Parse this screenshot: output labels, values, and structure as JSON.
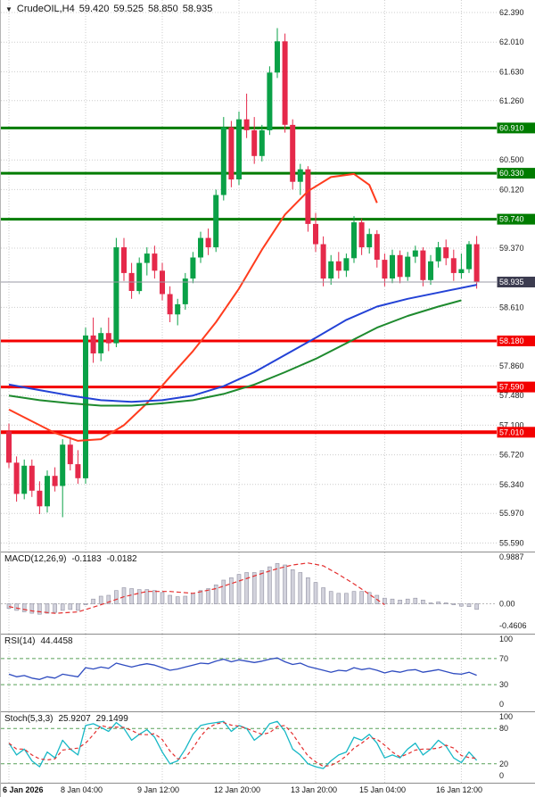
{
  "header": {
    "dropdown_icon": "▼",
    "symbol": "CrudeOIL,H4",
    "open": "59.420",
    "high": "59.525",
    "low": "58.850",
    "close": "58.935"
  },
  "chart_data": [
    {
      "type": "candlestick",
      "title": "CrudeOIL,H4",
      "price_range": {
        "min": 55.48,
        "max": 62.55
      },
      "colors": {
        "bull": "#0aa147",
        "bear": "#e5294a"
      },
      "x_labels": [
        {
          "index": 0,
          "label": "6 Jan 2026"
        },
        {
          "index": 10,
          "label": "8 Jan 04:00"
        },
        {
          "index": 20,
          "label": "9 Jan 12:00"
        },
        {
          "index": 30,
          "label": "12 Jan 20:00"
        },
        {
          "index": 40,
          "label": "13 Jan 20:00"
        },
        {
          "index": 49,
          "label": "15 Jan 04:00"
        },
        {
          "index": 59,
          "label": "16 Jan 12:00"
        }
      ],
      "axis_ticks": [
        {
          "label": "62.390",
          "value": 62.39
        },
        {
          "label": "62.010",
          "value": 62.01
        },
        {
          "label": "61.630",
          "value": 61.63
        },
        {
          "label": "61.260",
          "value": 61.26
        },
        {
          "label": "60.500",
          "value": 60.5
        },
        {
          "label": "60.120",
          "value": 60.12
        },
        {
          "label": "59.370",
          "value": 59.37
        },
        {
          "label": "58.610",
          "value": 58.61
        },
        {
          "label": "57.860",
          "value": 57.86
        },
        {
          "label": "57.480",
          "value": 57.48
        },
        {
          "label": "57.100",
          "value": 57.1
        },
        {
          "label": "56.720",
          "value": 56.72
        },
        {
          "label": "56.340",
          "value": 56.34
        },
        {
          "label": "55.970",
          "value": 55.97
        },
        {
          "label": "55.590",
          "value": 55.59
        }
      ],
      "levels": [
        {
          "label": "60.910",
          "value": 60.91,
          "color": "#007c00",
          "width": 3
        },
        {
          "label": "60.330",
          "value": 60.33,
          "color": "#007c00",
          "width": 3
        },
        {
          "label": "59.740",
          "value": 59.74,
          "color": "#007c00",
          "width": 3
        },
        {
          "label": "58.180",
          "value": 58.18,
          "color": "#f30000",
          "width": 3
        },
        {
          "label": "57.590",
          "value": 57.59,
          "color": "#f30000",
          "width": 3
        },
        {
          "label": "57.010",
          "value": 57.01,
          "color": "#f30000",
          "width": 4
        },
        {
          "label": "58.935",
          "value": 58.935,
          "color": "#3c3c50",
          "width": 1,
          "style": "bid"
        }
      ],
      "candles": [
        [
          57.02,
          57.12,
          56.55,
          56.62
        ],
        [
          56.62,
          56.7,
          56.12,
          56.22
        ],
        [
          56.22,
          56.66,
          56.15,
          56.58
        ],
        [
          56.58,
          56.66,
          56.18,
          56.26
        ],
        [
          56.26,
          56.38,
          55.96,
          56.06
        ],
        [
          56.06,
          56.52,
          55.98,
          56.45
        ],
        [
          56.45,
          56.56,
          56.25,
          56.32
        ],
        [
          56.32,
          56.92,
          55.92,
          56.85
        ],
        [
          56.85,
          56.95,
          56.52,
          56.6
        ],
        [
          56.6,
          56.78,
          56.35,
          56.42
        ],
        [
          56.42,
          58.35,
          56.35,
          58.25
        ],
        [
          58.25,
          58.48,
          57.9,
          58.02
        ],
        [
          58.02,
          58.35,
          57.92,
          58.28
        ],
        [
          58.28,
          58.48,
          58.05,
          58.15
        ],
        [
          58.15,
          59.5,
          58.1,
          59.38
        ],
        [
          59.38,
          59.5,
          58.95,
          59.05
        ],
        [
          59.05,
          59.18,
          58.72,
          58.82
        ],
        [
          58.82,
          59.25,
          58.78,
          59.18
        ],
        [
          59.18,
          59.38,
          59.02,
          59.3
        ],
        [
          59.3,
          59.4,
          58.98,
          59.08
        ],
        [
          59.08,
          59.18,
          58.7,
          58.78
        ],
        [
          58.78,
          58.88,
          58.42,
          58.52
        ],
        [
          58.52,
          58.72,
          58.38,
          58.65
        ],
        [
          58.65,
          59.05,
          58.58,
          58.98
        ],
        [
          58.98,
          59.32,
          58.92,
          59.25
        ],
        [
          59.25,
          59.58,
          59.18,
          59.5
        ],
        [
          59.5,
          59.62,
          59.28,
          59.38
        ],
        [
          59.38,
          60.12,
          59.32,
          60.05
        ],
        [
          60.05,
          61.05,
          59.98,
          60.92
        ],
        [
          60.92,
          61.0,
          60.15,
          60.25
        ],
        [
          60.25,
          61.12,
          60.18,
          61.02
        ],
        [
          61.02,
          61.35,
          60.78,
          60.88
        ],
        [
          60.88,
          61.05,
          60.45,
          60.55
        ],
        [
          60.55,
          60.95,
          60.48,
          60.88
        ],
        [
          60.88,
          61.7,
          60.82,
          61.62
        ],
        [
          61.62,
          62.19,
          61.55,
          62.02
        ],
        [
          62.02,
          62.12,
          60.85,
          60.95
        ],
        [
          60.95,
          61.02,
          60.12,
          60.22
        ],
        [
          60.22,
          60.45,
          60.05,
          60.38
        ],
        [
          60.38,
          60.42,
          59.58,
          59.68
        ],
        [
          59.68,
          59.82,
          59.32,
          59.42
        ],
        [
          59.42,
          59.52,
          58.88,
          58.98
        ],
        [
          58.98,
          59.28,
          58.9,
          59.2
        ],
        [
          59.2,
          59.32,
          58.98,
          59.08
        ],
        [
          59.08,
          59.3,
          59.0,
          59.24
        ],
        [
          59.24,
          59.78,
          59.18,
          59.7
        ],
        [
          59.7,
          59.75,
          59.28,
          59.38
        ],
        [
          59.38,
          59.62,
          59.3,
          59.55
        ],
        [
          59.55,
          59.6,
          59.12,
          59.22
        ],
        [
          59.22,
          59.3,
          58.88,
          58.98
        ],
        [
          58.98,
          59.35,
          58.92,
          59.28
        ],
        [
          59.28,
          59.34,
          58.92,
          59.0
        ],
        [
          59.0,
          59.32,
          58.95,
          59.26
        ],
        [
          59.26,
          59.4,
          59.18,
          59.34
        ],
        [
          59.34,
          59.38,
          58.88,
          58.96
        ],
        [
          58.96,
          59.28,
          58.9,
          59.2
        ],
        [
          59.2,
          59.45,
          59.12,
          59.38
        ],
        [
          59.38,
          59.48,
          59.15,
          59.24
        ],
        [
          59.24,
          59.35,
          58.95,
          59.05
        ],
        [
          59.05,
          59.3,
          58.98,
          59.1
        ],
        [
          59.1,
          59.46,
          59.05,
          59.42
        ],
        [
          59.42,
          59.525,
          58.85,
          58.935
        ]
      ],
      "overlays": [
        {
          "name": "ma-fast-red",
          "color": "#ff3c1e",
          "points": [
            [
              0,
              57.3
            ],
            [
              3,
              57.15
            ],
            [
              6,
              57.0
            ],
            [
              9,
              56.9
            ],
            [
              12,
              56.92
            ],
            [
              15,
              57.1
            ],
            [
              18,
              57.38
            ],
            [
              21,
              57.72
            ],
            [
              24,
              58.05
            ],
            [
              27,
              58.42
            ],
            [
              30,
              58.85
            ],
            [
              33,
              59.35
            ],
            [
              36,
              59.8
            ],
            [
              39,
              60.1
            ],
            [
              42,
              60.28
            ],
            [
              45,
              60.32
            ],
            [
              47,
              60.18
            ],
            [
              48,
              59.95
            ]
          ]
        },
        {
          "name": "ma-mid-blue",
          "color": "#2342d6",
          "points": [
            [
              0,
              57.62
            ],
            [
              4,
              57.55
            ],
            [
              8,
              57.48
            ],
            [
              12,
              57.42
            ],
            [
              16,
              57.4
            ],
            [
              20,
              57.42
            ],
            [
              24,
              57.48
            ],
            [
              28,
              57.6
            ],
            [
              32,
              57.78
            ],
            [
              36,
              58.0
            ],
            [
              40,
              58.22
            ],
            [
              44,
              58.45
            ],
            [
              48,
              58.62
            ],
            [
              52,
              58.72
            ],
            [
              56,
              58.8
            ],
            [
              61,
              58.9
            ]
          ]
        },
        {
          "name": "ma-slow-green",
          "color": "#1e8a2e",
          "points": [
            [
              0,
              57.48
            ],
            [
              4,
              57.42
            ],
            [
              8,
              57.38
            ],
            [
              12,
              57.35
            ],
            [
              16,
              57.35
            ],
            [
              20,
              57.38
            ],
            [
              24,
              57.42
            ],
            [
              28,
              57.5
            ],
            [
              32,
              57.62
            ],
            [
              36,
              57.78
            ],
            [
              40,
              57.95
            ],
            [
              44,
              58.15
            ],
            [
              48,
              58.35
            ],
            [
              52,
              58.5
            ],
            [
              56,
              58.62
            ],
            [
              59,
              58.7
            ]
          ]
        }
      ]
    },
    {
      "type": "bar",
      "label_name": "MACD(12,26,9)",
      "label_values": [
        "-0.1183",
        "-0.0182"
      ],
      "range": {
        "min": -0.4606,
        "max": 0.9887
      },
      "colors": {
        "histogram": "#d2d2dc",
        "histogram_border": "#9191a2",
        "signal": "#e42f2f"
      },
      "axis_ticks": [
        {
          "label": "0.9887",
          "value": 0.9887
        },
        {
          "label": "0.00",
          "value": 0
        },
        {
          "label": "-0.4606",
          "value": -0.4606
        }
      ],
      "values": [
        -0.1,
        -0.14,
        -0.17,
        -0.2,
        -0.22,
        -0.2,
        -0.18,
        -0.14,
        -0.12,
        -0.14,
        -0.02,
        0.1,
        0.16,
        0.18,
        0.28,
        0.34,
        0.32,
        0.3,
        0.3,
        0.28,
        0.24,
        0.18,
        0.15,
        0.16,
        0.22,
        0.28,
        0.32,
        0.4,
        0.5,
        0.55,
        0.62,
        0.66,
        0.66,
        0.7,
        0.78,
        0.85,
        0.82,
        0.72,
        0.66,
        0.55,
        0.45,
        0.34,
        0.26,
        0.22,
        0.22,
        0.26,
        0.26,
        0.24,
        0.18,
        0.12,
        0.1,
        0.08,
        0.1,
        0.12,
        0.08,
        0.02,
        0.04,
        0.02,
        -0.02,
        -0.05,
        -0.06,
        -0.1183
      ],
      "signal": {
        "points": [
          [
            0,
            -0.06
          ],
          [
            3,
            -0.15
          ],
          [
            6,
            -0.2
          ],
          [
            9,
            -0.17
          ],
          [
            12,
            -0.02
          ],
          [
            15,
            0.15
          ],
          [
            18,
            0.26
          ],
          [
            21,
            0.26
          ],
          [
            24,
            0.22
          ],
          [
            27,
            0.32
          ],
          [
            30,
            0.48
          ],
          [
            33,
            0.64
          ],
          [
            35,
            0.74
          ],
          [
            37,
            0.82
          ],
          [
            39,
            0.86
          ],
          [
            41,
            0.8
          ],
          [
            43,
            0.62
          ],
          [
            45,
            0.42
          ],
          [
            47,
            0.2
          ],
          [
            49,
            -0.02
          ]
        ]
      }
    },
    {
      "type": "line",
      "label_name": "RSI(14)",
      "label_values": [
        "44.4458"
      ],
      "range": {
        "min": 0,
        "max": 100
      },
      "levels": [
        70,
        30
      ],
      "colors": {
        "line": "#2f4cc0",
        "level": "#58a058"
      },
      "axis_ticks": [
        {
          "label": "100",
          "value": 100
        },
        {
          "label": "70",
          "value": 70
        },
        {
          "label": "30",
          "value": 30
        },
        {
          "label": "0",
          "value": 0
        }
      ],
      "values": [
        46,
        42,
        44,
        40,
        38,
        42,
        40,
        46,
        44,
        42,
        56,
        54,
        57,
        55,
        63,
        60,
        57,
        60,
        62,
        60,
        56,
        52,
        54,
        57,
        60,
        63,
        62,
        66,
        69,
        65,
        68,
        66,
        64,
        66,
        69,
        71,
        65,
        61,
        63,
        58,
        55,
        52,
        49,
        52,
        51,
        56,
        53,
        55,
        52,
        48,
        51,
        49,
        52,
        53,
        49,
        51,
        53,
        50,
        47,
        46,
        49,
        44.4
      ]
    },
    {
      "type": "line",
      "label_name": "Stoch(5,3,3)",
      "label_values": [
        "25.9207",
        "29.1499"
      ],
      "range": {
        "min": 0,
        "max": 100
      },
      "levels": [
        80,
        20
      ],
      "colors": {
        "k": "#17b8c6",
        "d": "#e42f2f",
        "level": "#58a058"
      },
      "axis_ticks": [
        {
          "label": "100",
          "value": 100
        },
        {
          "label": "80",
          "value": 80
        },
        {
          "label": "20",
          "value": 20
        },
        {
          "label": "0",
          "value": 0
        }
      ],
      "values": [
        55,
        35,
        45,
        25,
        15,
        40,
        30,
        60,
        45,
        35,
        85,
        88,
        82,
        75,
        90,
        80,
        60,
        70,
        78,
        65,
        40,
        20,
        25,
        45,
        70,
        85,
        88,
        90,
        92,
        75,
        85,
        80,
        60,
        70,
        88,
        92,
        75,
        45,
        35,
        20,
        15,
        12,
        25,
        35,
        40,
        65,
        60,
        70,
        55,
        30,
        35,
        30,
        45,
        55,
        35,
        45,
        60,
        50,
        30,
        22,
        40,
        25.9
      ]
    }
  ]
}
